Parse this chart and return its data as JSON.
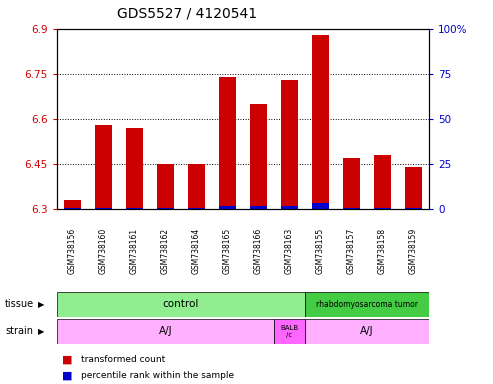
{
  "title": "GDS5527 / 4120541",
  "samples": [
    "GSM738156",
    "GSM738160",
    "GSM738161",
    "GSM738162",
    "GSM738164",
    "GSM738165",
    "GSM738166",
    "GSM738163",
    "GSM738155",
    "GSM738157",
    "GSM738158",
    "GSM738159"
  ],
  "red_values": [
    6.33,
    6.58,
    6.57,
    6.45,
    6.45,
    6.74,
    6.65,
    6.73,
    6.88,
    6.47,
    6.48,
    6.44
  ],
  "blue_values": [
    2,
    2,
    2,
    2,
    2,
    8,
    8,
    8,
    15,
    2,
    2,
    2
  ],
  "ymin": 6.3,
  "ymax": 6.9,
  "yticks": [
    6.3,
    6.45,
    6.6,
    6.75,
    6.9
  ],
  "ytick_labels": [
    "6.3",
    "6.45",
    "6.6",
    "6.75",
    "6.9"
  ],
  "right_yticks": [
    0,
    25,
    50,
    75,
    100
  ],
  "right_ytick_labels": [
    "0",
    "25",
    "50",
    "75",
    "100%"
  ],
  "hlines": [
    6.45,
    6.6,
    6.75
  ],
  "bar_color": "#CC0000",
  "blue_color": "#0000CC",
  "bg_color": "#CCCCCC",
  "tissue_control_color": "#90EE90",
  "tissue_tumor_color": "#44CC44",
  "strain_aj_color": "#FFB0FF",
  "strain_balb_color": "#FF66FF",
  "title_fontsize": 10,
  "axis_label_color_red": "#CC0000",
  "axis_label_color_blue": "#0000CC"
}
